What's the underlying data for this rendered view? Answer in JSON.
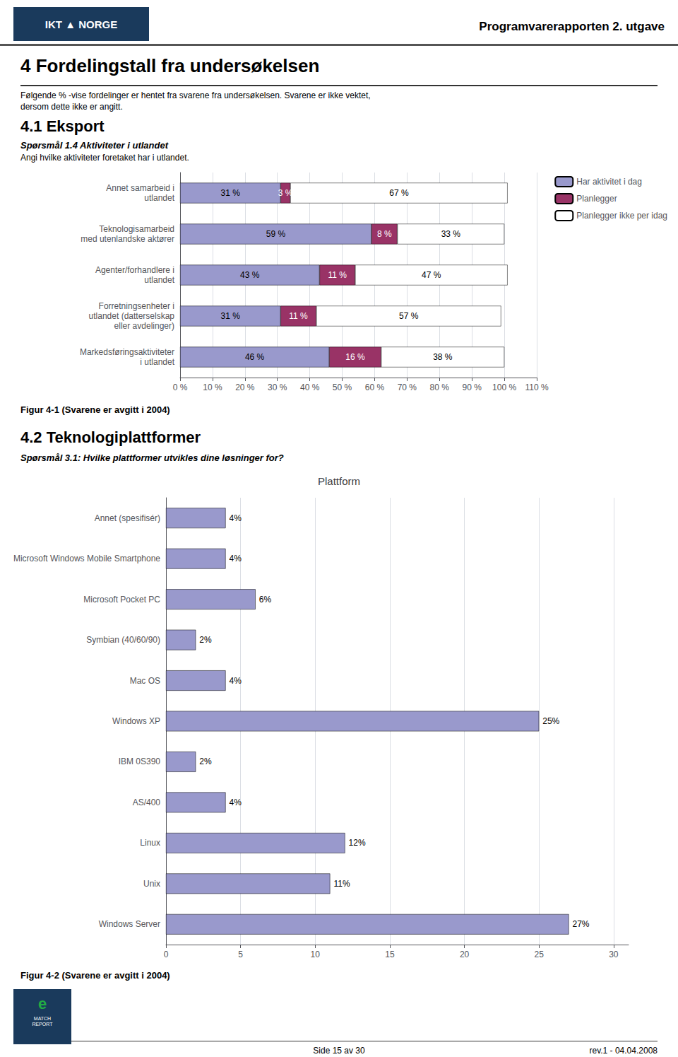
{
  "background_color": "#ffffff",
  "header_logo": "IKT ▲ NORGE",
  "header_title": "Programvarerapporten 2. utgave",
  "page_title": "4  Fordelingstall fra undersøkelsen",
  "page_subtitle1": "Følgende % -vise fordelinger er hentet fra svarene fra undersøkelsen. Svarene er ikke vektet,",
  "page_subtitle2": "dersom dette ikke er angitt.",
  "section1_title": "4.1  Eksport",
  "section1_subtitle": "Spørsmål 1.4 Aktiviteter i utlandet",
  "section1_desc": "Angi hvilke aktiviteter foretaket har i utlandet.",
  "section2_title": "4.2  Teknologiplattformer",
  "section2_subtitle": "Spørsmål 3.1: Hvilke plattformer utvikles dine løsninger for?",
  "footer_center": "Side 15 av 30",
  "footer_right": "rev.1 - 04.04.2008",
  "footer_logo": [
    "e",
    "MATCH\nREPORT"
  ],
  "chart_data": [
    {
      "type": "bar",
      "orientation": "horizontal",
      "stacked": true,
      "categories": [
        "Annet samarbeid i\nutlandet",
        "Teknologisamarbeid\nmed utenlandske aktører",
        "Agenter/forhandlere i\nutlandet",
        "Forretningsenheter i\nutlandet (datterselskap\neller avdelinger)",
        "Markedsføringsaktiviteter\ni utlandet"
      ],
      "series": [
        {
          "name": "Har aktivitet i dag",
          "color": "#9999cc",
          "values": [
            31,
            59,
            43,
            31,
            46
          ],
          "value_labels": [
            "31 %",
            "59 %",
            "43 %",
            "31 %",
            "46 %"
          ]
        },
        {
          "name": "Planlegger",
          "color": "#993366",
          "values": [
            3,
            8,
            11,
            11,
            16
          ],
          "value_labels": [
            "3 %",
            "8 %",
            "11 %",
            "11 %",
            "16 %"
          ]
        },
        {
          "name": "Planlegger ikke per idag",
          "color": "#ffffff",
          "values": [
            67,
            33,
            47,
            57,
            38
          ],
          "value_labels": [
            "67 %",
            "33 %",
            "47 %",
            "57 %",
            "38 %"
          ]
        }
      ],
      "xlim": [
        0,
        110
      ],
      "xticks": [
        {
          "value": 0,
          "label": "0 %"
        },
        {
          "value": 10,
          "label": "10 %"
        },
        {
          "value": 20,
          "label": "20 %"
        },
        {
          "value": 30,
          "label": "30 %"
        },
        {
          "value": 40,
          "label": "40 %"
        },
        {
          "value": 50,
          "label": "50 %"
        },
        {
          "value": 60,
          "label": "60 %"
        },
        {
          "value": 70,
          "label": "70 %"
        },
        {
          "value": 80,
          "label": "80 %"
        },
        {
          "value": 90,
          "label": "90 %"
        },
        {
          "value": 100,
          "label": "100 %"
        },
        {
          "value": 110,
          "label": "110 %"
        }
      ],
      "grid": true,
      "legend": "upper right",
      "data_labels": true,
      "caption": "Figur 4-1 (Svarene er avgitt i 2004)"
    },
    {
      "type": "bar",
      "orientation": "horizontal",
      "title": "Plattform",
      "categories": [
        "Annet (spesifisér)",
        "Microsoft Windows Mobile Smartphone",
        "Microsoft Pocket PC",
        "Symbian (40/60/90)",
        "Mac OS",
        "Windows XP",
        "IBM 0S390",
        "AS/400",
        "Linux",
        "Unix",
        "Windows Server"
      ],
      "values": [
        4,
        4,
        6,
        2,
        4,
        25,
        2,
        4,
        12,
        11,
        27
      ],
      "value_labels": [
        "4%",
        "4%",
        "6%",
        "2%",
        "4%",
        "25%",
        "2%",
        "4%",
        "12%",
        "11%",
        "27%"
      ],
      "color": "#9999cc",
      "xlim": [
        0,
        31
      ],
      "xticks": [
        0,
        5,
        10,
        15,
        20,
        25,
        30
      ],
      "grid": true,
      "data_labels": true,
      "caption": "Figur 4-2 (Svarene er avgitt i 2004)"
    }
  ]
}
